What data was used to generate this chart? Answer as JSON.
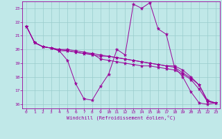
{
  "xlabel": "Windchill (Refroidissement éolien,°C)",
  "bg_color": "#c0e8e8",
  "line_color": "#990099",
  "grid_color": "#99cccc",
  "xlim": [
    -0.5,
    23.5
  ],
  "ylim": [
    15.7,
    23.5
  ],
  "yticks": [
    16,
    17,
    18,
    19,
    20,
    21,
    22,
    23
  ],
  "xticks": [
    0,
    1,
    2,
    3,
    4,
    5,
    6,
    7,
    8,
    9,
    10,
    11,
    12,
    13,
    14,
    15,
    16,
    17,
    18,
    19,
    20,
    21,
    22,
    23
  ],
  "series": [
    [
      21.7,
      20.5,
      20.2,
      20.1,
      19.9,
      19.2,
      17.5,
      16.4,
      16.3,
      17.3,
      18.2,
      20.0,
      19.6,
      23.3,
      23.0,
      23.4,
      21.5,
      21.1,
      18.7,
      18.0,
      16.9,
      16.1,
      16.0,
      16.1
    ],
    [
      21.7,
      20.5,
      20.2,
      20.1,
      19.9,
      19.9,
      19.8,
      19.7,
      19.6,
      19.5,
      19.5,
      19.4,
      19.3,
      19.2,
      19.1,
      19.0,
      18.9,
      18.8,
      18.8,
      18.5,
      18.0,
      17.4,
      16.2,
      16.1
    ],
    [
      21.7,
      20.5,
      20.2,
      20.1,
      20.0,
      19.9,
      19.8,
      19.7,
      19.7,
      19.3,
      19.2,
      19.1,
      19.0,
      18.9,
      18.8,
      18.8,
      18.7,
      18.6,
      18.5,
      18.2,
      17.8,
      17.1,
      16.2,
      16.1
    ],
    [
      21.7,
      20.5,
      20.2,
      20.1,
      20.0,
      20.0,
      19.9,
      19.8,
      19.7,
      19.6,
      19.5,
      19.4,
      19.3,
      19.2,
      19.1,
      19.0,
      18.9,
      18.8,
      18.7,
      18.3,
      17.9,
      17.4,
      16.3,
      16.1
    ]
  ]
}
